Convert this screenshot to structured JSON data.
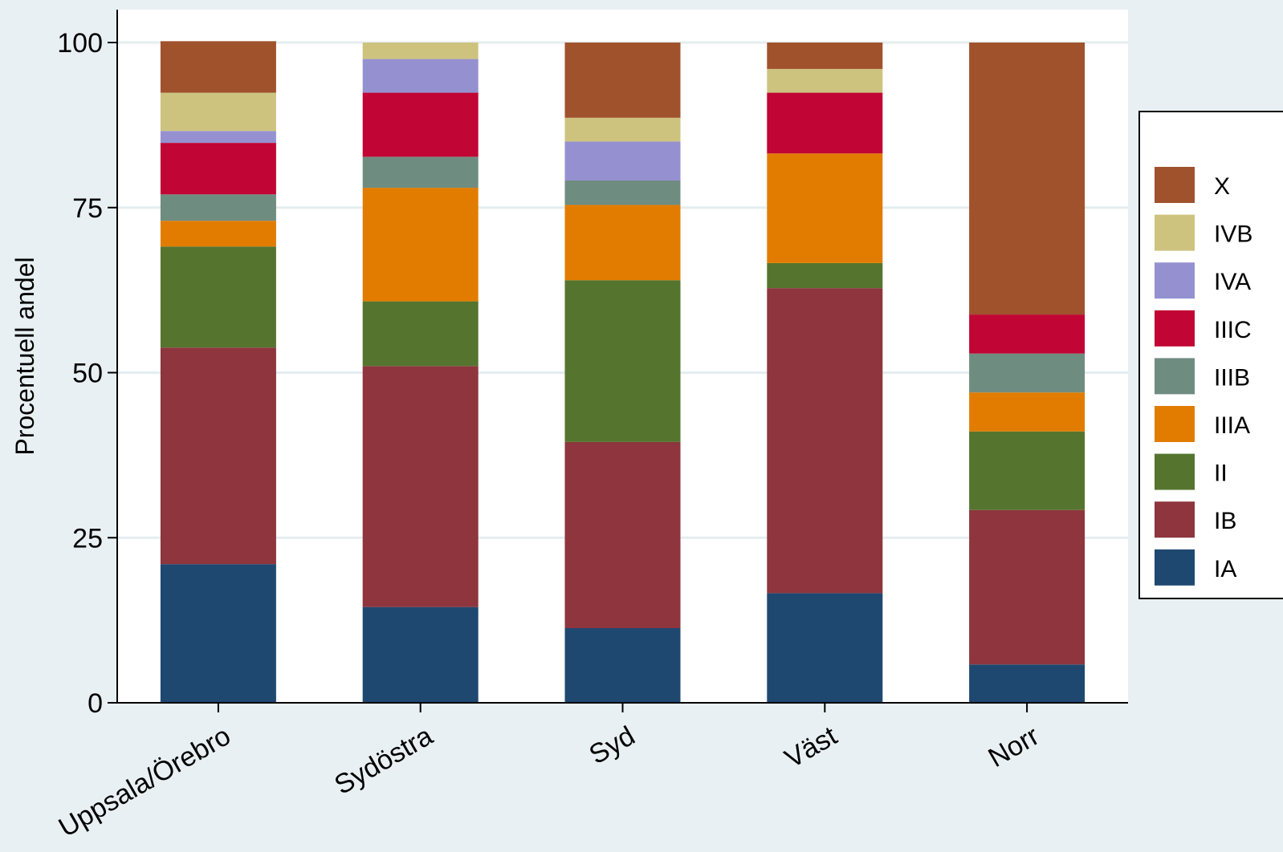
{
  "chart_data": {
    "type": "bar",
    "stacked": true,
    "title": "",
    "xlabel": "",
    "ylabel": "Procentuell andel",
    "ylim": [
      0,
      100
    ],
    "yticks": [
      0,
      25,
      50,
      75,
      100
    ],
    "grid": true,
    "legend_position": "right",
    "categories": [
      "Uppsala/Örebro",
      "Sydöstra",
      "Syd",
      "Väst",
      "Norr"
    ],
    "series": [
      {
        "name": "IA",
        "color": "#1e4870",
        "values": [
          21.0,
          14.5,
          11.3,
          16.6,
          5.8
        ]
      },
      {
        "name": "IB",
        "color": "#8e353d",
        "values": [
          32.8,
          36.5,
          28.2,
          46.2,
          23.4
        ]
      },
      {
        "name": "II",
        "color": "#55752f",
        "values": [
          15.3,
          9.8,
          24.5,
          3.8,
          11.9
        ]
      },
      {
        "name": "IIIA",
        "color": "#e27c00",
        "values": [
          3.9,
          17.2,
          11.4,
          16.6,
          5.9
        ]
      },
      {
        "name": "IIIB",
        "color": "#6f8c80",
        "values": [
          4.0,
          4.7,
          3.7,
          0,
          5.9
        ]
      },
      {
        "name": "IIIC",
        "color": "#c10534",
        "values": [
          7.8,
          9.7,
          0,
          9.2,
          5.9
        ]
      },
      {
        "name": "IVA",
        "color": "#9591d1",
        "values": [
          1.8,
          5.1,
          5.9,
          0,
          0
        ]
      },
      {
        "name": "IVB",
        "color": "#cdc37f",
        "values": [
          5.8,
          2.5,
          3.6,
          3.6,
          0
        ]
      },
      {
        "name": "X",
        "color": "#a0522d",
        "values": [
          7.8,
          0,
          11.4,
          4.0,
          41.2
        ]
      }
    ]
  }
}
